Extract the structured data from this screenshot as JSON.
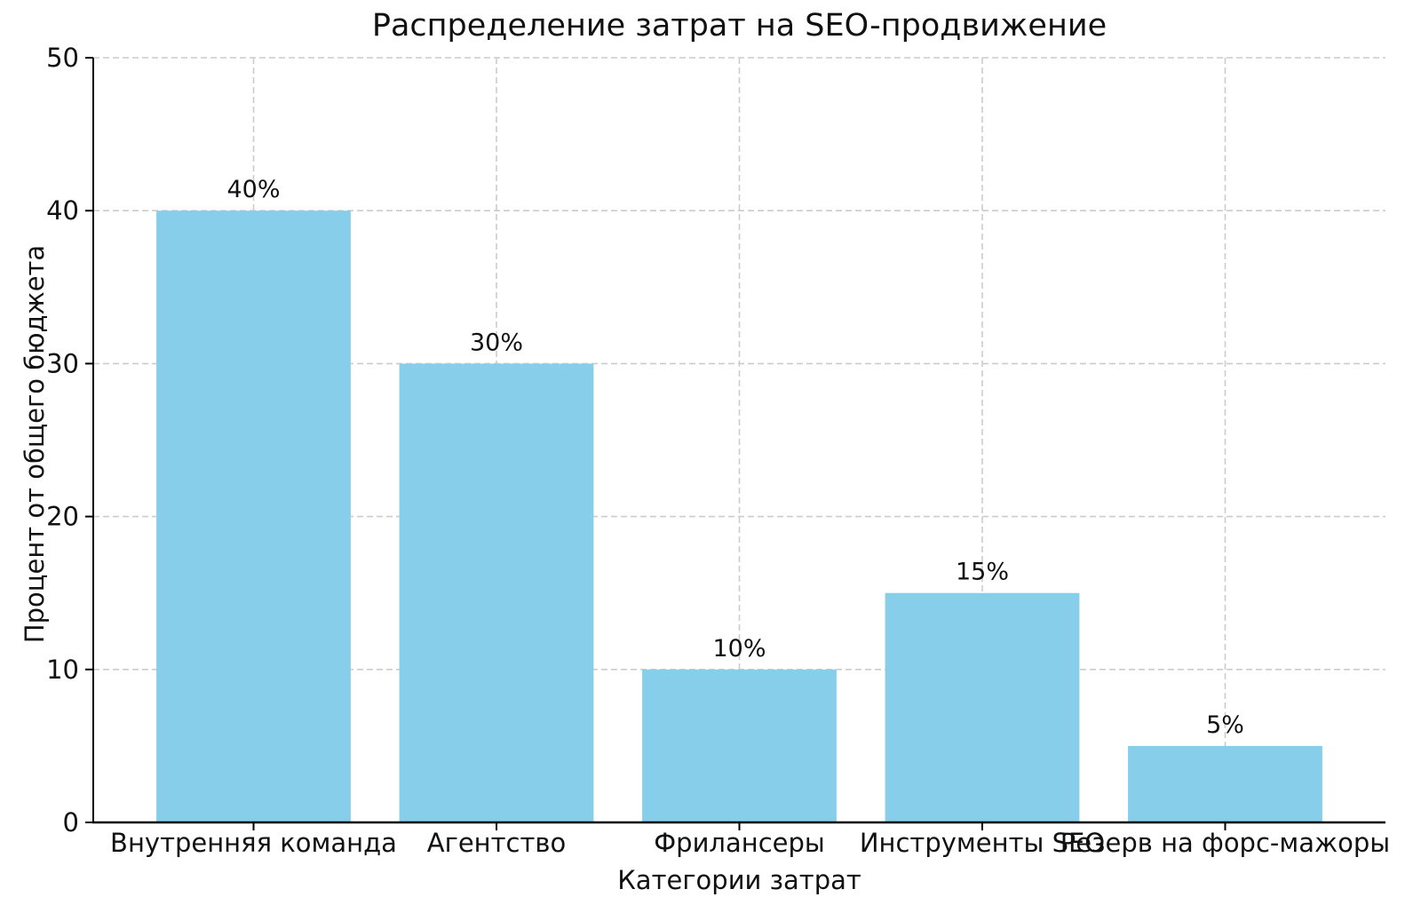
{
  "figure": {
    "background": "#ffffff"
  },
  "chart_data": {
    "type": "bar",
    "title": "Распределение затрат на SEO-продвижение",
    "xlabel": "Категории затрат",
    "ylabel": "Процент от общего бюджета",
    "categories": [
      "Внутренняя команда",
      "Агентство",
      "Фрилансеры",
      "Инструменты SEO",
      "Резерв на форс-мажоры"
    ],
    "values": [
      40,
      30,
      10,
      15,
      5
    ],
    "bar_value_labels": [
      "40%",
      "30%",
      "10%",
      "15%",
      "5%"
    ],
    "ylim": [
      0,
      50
    ],
    "yticks": [
      0,
      10,
      20,
      30,
      40,
      50
    ],
    "ytick_labels": [
      "0",
      "10",
      "20",
      "30",
      "40",
      "50"
    ],
    "grid": "dashed-both-axes",
    "legend": "none",
    "colors": {
      "bar": "#87CEEB",
      "grid": "#cccccc",
      "axis": "#000000",
      "text": "#111111"
    }
  }
}
